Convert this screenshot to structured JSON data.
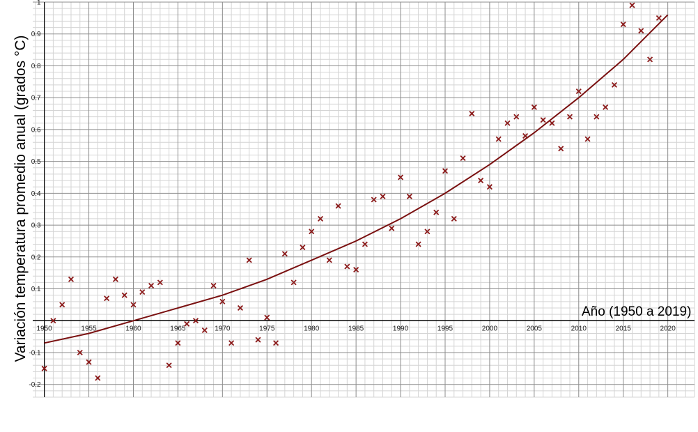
{
  "chart_data": {
    "type": "scatter",
    "title": "",
    "xlabel": "Año (1950 a 2019)",
    "ylabel": "Variación temperatura promedio anual (grados °C)",
    "xlim": [
      1948.7,
      2023
    ],
    "ylim": [
      -0.24,
      1
    ],
    "x_ticks": [
      1950,
      1955,
      1960,
      1965,
      1970,
      1975,
      1980,
      1985,
      1990,
      1995,
      2000,
      2005,
      2010,
      2015,
      2020
    ],
    "x_tick_labels": [
      "1950",
      "1955",
      "1960",
      "1965",
      "1970",
      "1975",
      "1980",
      "1985",
      "1990",
      "1995",
      "2000",
      "2005",
      "2010",
      "2015",
      "2020"
    ],
    "y_ticks": [
      -0.2,
      -0.1,
      0.1,
      0.2,
      0.3,
      0.4,
      0.5,
      0.6,
      0.7,
      0.8,
      0.9,
      1
    ],
    "y_tick_labels": [
      "-0.2",
      "-0.1",
      "0.1",
      "0.2",
      "0.3",
      "0.4",
      "0.5",
      "0.6",
      "0.7",
      "0.8",
      "0.9",
      "1"
    ],
    "grid": true,
    "colors": {
      "marker": "#8b1a1a",
      "trend": "#7a1010",
      "major_grid": "#8c8c8c",
      "minor_grid": "#d4d4d4"
    },
    "series": [
      {
        "marker": "x",
        "x": [
          1950,
          1951,
          1952,
          1953,
          1954,
          1955,
          1956,
          1957,
          1958,
          1959,
          1960,
          1961,
          1962,
          1963,
          1964,
          1965,
          1966,
          1967,
          1968,
          1969,
          1970,
          1971,
          1972,
          1973,
          1974,
          1975,
          1976,
          1977,
          1978,
          1979,
          1980,
          1981,
          1982,
          1983,
          1984,
          1985,
          1986,
          1987,
          1988,
          1989,
          1990,
          1991,
          1992,
          1993,
          1994,
          1995,
          1996,
          1997,
          1998,
          1999,
          2000,
          2001,
          2002,
          2003,
          2004,
          2005,
          2006,
          2007,
          2008,
          2009,
          2010,
          2011,
          2012,
          2013,
          2014,
          2015,
          2016,
          2017,
          2018,
          2019
        ],
        "y": [
          -0.15,
          0.0,
          0.05,
          0.13,
          -0.1,
          -0.13,
          -0.18,
          0.07,
          0.13,
          0.08,
          0.05,
          0.09,
          0.11,
          0.12,
          -0.14,
          -0.07,
          -0.01,
          0.0,
          -0.03,
          0.11,
          0.06,
          -0.07,
          0.04,
          0.19,
          -0.06,
          0.01,
          -0.07,
          0.21,
          0.12,
          0.23,
          0.28,
          0.32,
          0.19,
          0.36,
          0.17,
          0.16,
          0.24,
          0.38,
          0.39,
          0.29,
          0.45,
          0.39,
          0.24,
          0.28,
          0.34,
          0.47,
          0.32,
          0.51,
          0.65,
          0.44,
          0.42,
          0.57,
          0.62,
          0.64,
          0.58,
          0.67,
          0.63,
          0.62,
          0.54,
          0.64,
          0.72,
          0.57,
          0.64,
          0.67,
          0.74,
          0.93,
          0.99,
          0.91,
          0.82,
          0.95
        ]
      },
      {
        "marker": "line",
        "trend": "exponential",
        "x": [
          1950,
          1955,
          1960,
          1965,
          1970,
          1975,
          1980,
          1985,
          1990,
          1995,
          2000,
          2005,
          2010,
          2015,
          2020
        ],
        "y": [
          -0.07,
          -0.04,
          0.0,
          0.04,
          0.08,
          0.13,
          0.19,
          0.25,
          0.32,
          0.4,
          0.49,
          0.59,
          0.7,
          0.82,
          0.96
        ]
      }
    ]
  }
}
